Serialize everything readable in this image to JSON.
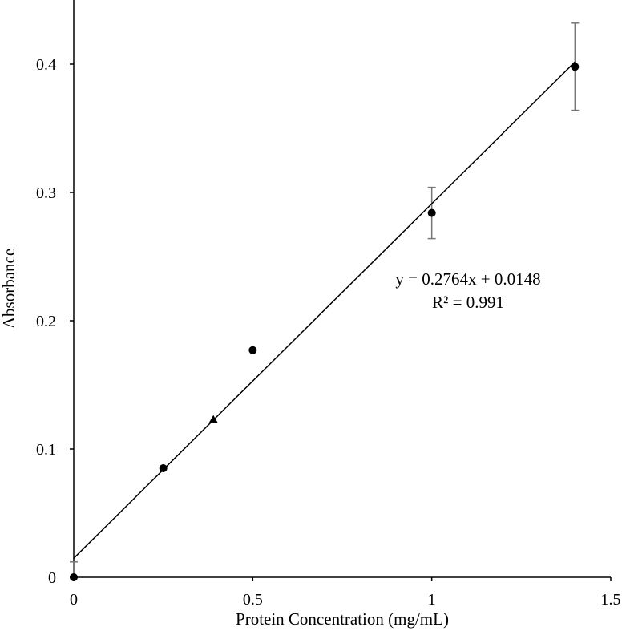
{
  "chart_data": {
    "type": "scatter",
    "title": "",
    "xlabel": "Protein Concentration (mg/mL)",
    "ylabel": "Absorbance",
    "xlim": [
      0,
      1.5
    ],
    "ylim": [
      0,
      0.4
    ],
    "x_ticks": [
      0,
      0.5,
      1,
      1.5
    ],
    "x_tick_labels": [
      "0",
      "0.5",
      "1",
      "1.5"
    ],
    "y_ticks": [
      0,
      0.1,
      0.2,
      0.3,
      0.4
    ],
    "y_tick_labels": [
      "0",
      "0.1",
      "0.2",
      "0.3",
      "0.4"
    ],
    "grid": false,
    "legend": "none",
    "series": [
      {
        "marker": "circle",
        "color": "#000000",
        "points": [
          {
            "x": 0,
            "y": 0,
            "error": 0.012
          },
          {
            "x": 0.25,
            "y": 0.085
          },
          {
            "x": 0.5,
            "y": 0.177
          },
          {
            "x": 1.0,
            "y": 0.284,
            "error": 0.02
          },
          {
            "x": 1.4,
            "y": 0.398,
            "error": 0.034
          }
        ]
      },
      {
        "marker": "triangle",
        "color": "#000000",
        "points": [
          {
            "x": 0.39,
            "y": 0.123
          }
        ]
      }
    ],
    "trendline": {
      "type": "linear",
      "slope": 0.2764,
      "intercept": 0.0148,
      "x_range": [
        0,
        1.4
      ],
      "color": "#000000"
    },
    "annotations": [
      {
        "text": "y = 0.2764x + 0.0148"
      },
      {
        "text": "R² = 0.991"
      }
    ]
  }
}
